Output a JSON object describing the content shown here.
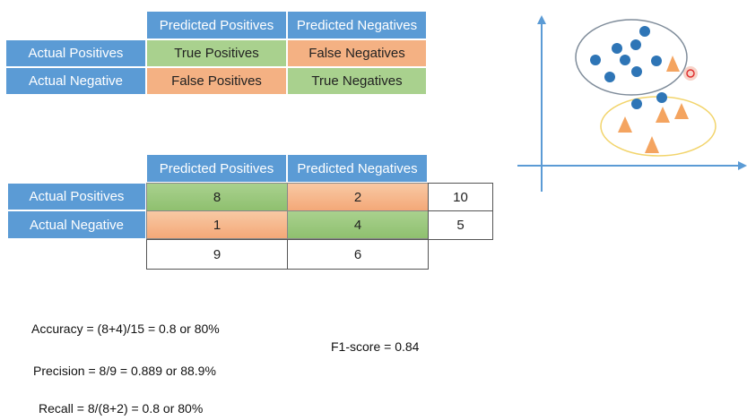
{
  "table1": {
    "col_headers": [
      "Predicted Positives",
      "Predicted Negatives"
    ],
    "row_headers": [
      "Actual Positives",
      "Actual Negative"
    ],
    "cells": [
      [
        "True Positives",
        "False Negatives"
      ],
      [
        "False Positives",
        "True Negatives"
      ]
    ]
  },
  "table2": {
    "col_headers": [
      "Predicted Positives",
      "Predicted Negatives"
    ],
    "row_headers": [
      "Actual Positives",
      "Actual Negative"
    ],
    "cells": [
      [
        "8",
        "2"
      ],
      [
        "1",
        "4"
      ]
    ],
    "row_totals": [
      "10",
      "5"
    ],
    "col_totals": [
      "9",
      "6"
    ]
  },
  "metrics": {
    "accuracy": "Accuracy = (8+4)/15 = 0.8 or 80%",
    "f1": "F1-score = 0.84",
    "precision": "Precision = 8/9 = 0.889 or 88.9%",
    "recall": "Recall = 8/(8+2) = 0.8 or 80%"
  },
  "scatter": {
    "colors": {
      "axis": "#5b9bd5",
      "circle_fill": "#2e75b6",
      "triangle_fill": "#f4a460",
      "cluster1_outline": "#7f8c9a",
      "cluster2_outline": "#f2d46b",
      "misclassified_marker": "#e03030"
    }
  }
}
